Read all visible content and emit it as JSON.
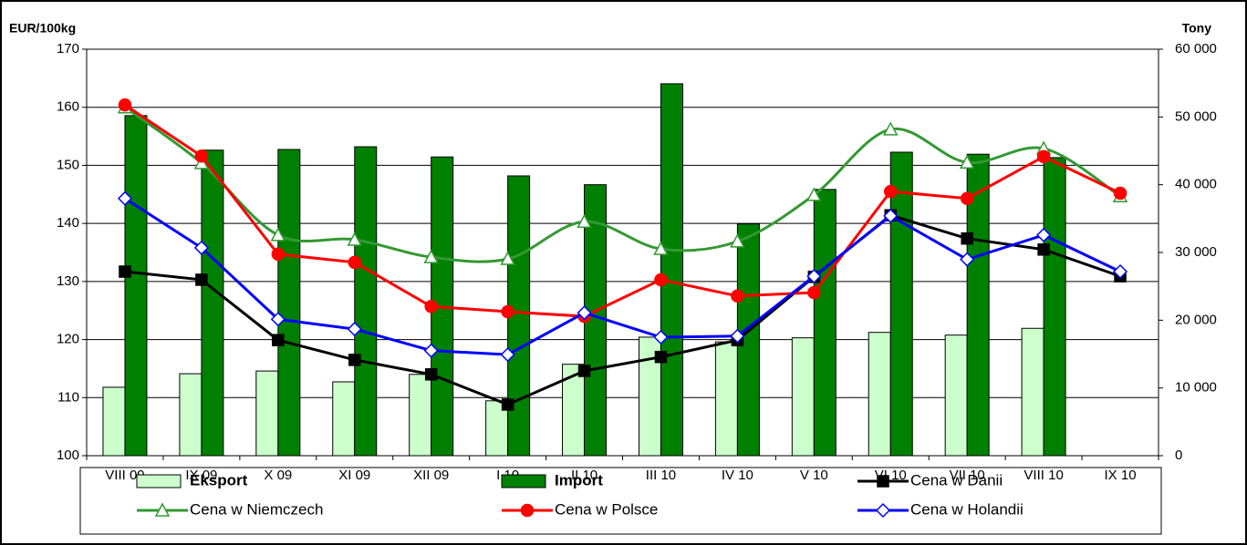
{
  "chart_data": {
    "type": "combo",
    "y_label": "EUR/100kg",
    "y2_label": "Tony",
    "categories": [
      "VIII 09",
      "IX 09",
      "X 09",
      "XI 09",
      "XII 09",
      "I 10",
      "II 10",
      "III 10",
      "IV 10",
      "V 10",
      "VI 10",
      "VII 10",
      "VIII 10",
      "IX 10"
    ],
    "ylim": [
      100,
      170
    ],
    "yticks": [
      100,
      110,
      120,
      130,
      140,
      150,
      160,
      170
    ],
    "y2lim": [
      0,
      60000
    ],
    "y2ticks": [
      0,
      {
        "value": 10000,
        "label": "10 000"
      },
      {
        "value": 20000,
        "label": "20 000"
      },
      {
        "value": 30000,
        "label": "30 000"
      },
      {
        "value": 40000,
        "label": "40 000"
      },
      {
        "value": 50000,
        "label": "50 000"
      },
      {
        "value": 60000,
        "label": "60 000"
      }
    ],
    "grid": true,
    "series": [
      {
        "name": "Eksport",
        "type": "bar",
        "axis": "y2",
        "color": "#ccffcc",
        "values": [
          10100,
          12100,
          12500,
          10900,
          12000,
          8100,
          13500,
          17500,
          16800,
          17400,
          18200,
          17800,
          18800,
          null
        ]
      },
      {
        "name": "Import",
        "type": "bar",
        "axis": "y2",
        "color": "#008000",
        "values": [
          50200,
          45100,
          45200,
          45600,
          44100,
          41300,
          40000,
          54900,
          34200,
          39300,
          44800,
          44500,
          44000,
          null
        ]
      },
      {
        "name": "Cena w Danii",
        "type": "line",
        "color": "#000000",
        "marker": "square",
        "marker_fill": "#000000",
        "values": [
          131.7,
          130.3,
          119.9,
          116.5,
          114.0,
          108.8,
          114.6,
          117.0,
          119.9,
          130.8,
          141.4,
          137.4,
          135.5,
          130.9
        ]
      },
      {
        "name": "Cena w Niemczech",
        "type": "line",
        "color": "#339933",
        "marker": "triangle",
        "marker_fill": "#ffffff",
        "smooth": true,
        "values": [
          160.0,
          150.4,
          138.0,
          137.2,
          134.2,
          133.9,
          140.3,
          135.6,
          136.9,
          144.9,
          156.2,
          150.5,
          152.9,
          144.7
        ]
      },
      {
        "name": "Cena w Polsce",
        "type": "line",
        "color": "#ff0000",
        "marker": "circle",
        "marker_fill": "#ff0000",
        "values": [
          160.4,
          151.6,
          134.7,
          133.3,
          125.7,
          124.8,
          124.0,
          130.3,
          127.5,
          128.1,
          145.5,
          144.3,
          151.5,
          145.2
        ]
      },
      {
        "name": "Cena w Holandii",
        "type": "line",
        "color": "#0000ff",
        "marker": "diamond",
        "marker_fill": "#ffffff",
        "values": [
          144.3,
          135.8,
          123.5,
          121.8,
          118.1,
          117.4,
          124.6,
          120.4,
          120.6,
          130.9,
          141.3,
          133.8,
          138.0,
          131.7
        ]
      }
    ]
  }
}
